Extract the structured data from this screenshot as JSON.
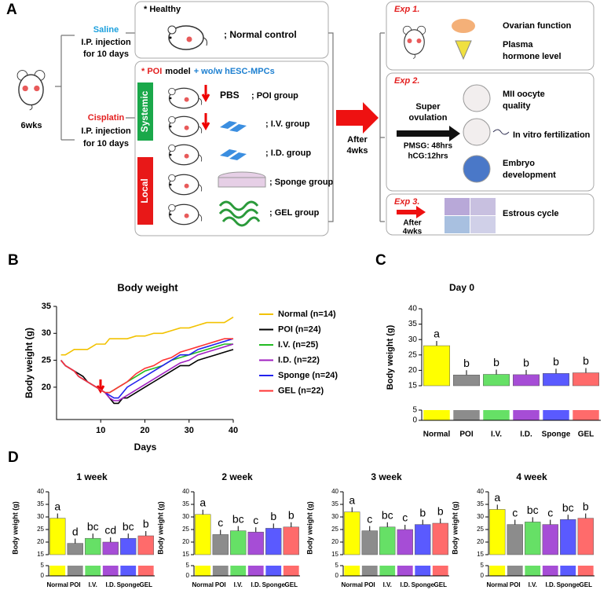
{
  "diagram": {
    "panel": "A",
    "age": "6wks",
    "saline": [
      "Saline",
      "I.P. injection",
      "for 10 days"
    ],
    "cisplatin": [
      "Cisplatin",
      "I.P. injection",
      "for 10 days"
    ],
    "healthy": "* Healthy",
    "normal_control": "; Normal control",
    "poi_header": [
      "* POI",
      "model",
      "+ wo/w hESC-MPCs"
    ],
    "systemic": "Systemic",
    "local": "Local",
    "pbs": "PBS",
    "groups": [
      "; POI group",
      "; I.V. group",
      "; I.D. group",
      "; Sponge group",
      "; GEL group"
    ],
    "after": [
      "After",
      "4wks"
    ],
    "exp1": {
      "label": "Exp 1.",
      "texts": [
        "Ovarian function",
        "Plasma",
        "hormone level"
      ]
    },
    "exp2": {
      "label": "Exp 2.",
      "superovulation": [
        "Super",
        "ovulation"
      ],
      "hormones": [
        "PMSG: 48hrs",
        "hCG:12hrs"
      ],
      "texts": [
        "MII oocyte",
        "quality",
        "In vitro fertilization",
        "Embryo",
        "development"
      ]
    },
    "exp3": {
      "label": "Exp 3.",
      "after": [
        "After",
        "4wks"
      ],
      "text": "Estrous cycle"
    }
  },
  "chart_data": [
    {
      "type": "line",
      "panel": "B",
      "title": "Body weight",
      "x_label": "Days",
      "y_label": "Body weight (g)",
      "x": [
        1,
        2,
        3,
        4,
        5,
        6,
        7,
        8,
        9,
        10,
        11,
        12,
        13,
        14,
        15,
        16,
        18,
        20,
        22,
        24,
        26,
        28,
        30,
        32,
        34,
        36,
        38,
        40
      ],
      "xlim": [
        0,
        40
      ],
      "xticks": [
        10,
        20,
        30,
        40
      ],
      "ylim": [
        14,
        35
      ],
      "yticks": [
        20,
        25,
        30,
        35
      ],
      "series": [
        {
          "name": "Normal (n=14)",
          "color": "#f2c200",
          "values": [
            26,
            26,
            26.5,
            27,
            27,
            27,
            27,
            27.5,
            28,
            28,
            28,
            29,
            29,
            29,
            29,
            29,
            29.5,
            29.5,
            30,
            30,
            30.5,
            31,
            31,
            31.5,
            32,
            32,
            32,
            33
          ]
        },
        {
          "name": "POI (n=24)",
          "color": "#000000",
          "values": [
            25,
            24,
            23.5,
            23,
            22.5,
            22,
            21,
            20.5,
            20,
            19.5,
            19,
            18,
            17,
            17,
            18,
            18,
            19,
            20,
            21,
            22,
            23,
            24,
            24,
            25,
            25.5,
            26,
            26.5,
            27
          ]
        },
        {
          "name": "I.V. (n=25)",
          "color": "#22bb22",
          "values": [
            25,
            24,
            23.5,
            23,
            22,
            21.5,
            21,
            20.5,
            20,
            19.5,
            19,
            19,
            19.5,
            20,
            20.5,
            21,
            22,
            23,
            23.5,
            24,
            25,
            25.5,
            26,
            26.5,
            27,
            27.5,
            28,
            28
          ]
        },
        {
          "name": "I.D. (n=22)",
          "color": "#a020c0",
          "values": [
            25,
            24,
            23.5,
            23,
            22,
            21.5,
            21,
            20.5,
            20,
            19.5,
            19,
            18,
            17.5,
            17.5,
            18,
            18.5,
            19.5,
            20.5,
            21.5,
            22.5,
            23.5,
            24.5,
            25,
            26,
            26.5,
            27,
            27.5,
            28
          ]
        },
        {
          "name": "Sponge (n=24)",
          "color": "#2222ee",
          "values": [
            25,
            24,
            23.5,
            23,
            22,
            21.5,
            21,
            20.5,
            20,
            19.5,
            19,
            18.5,
            18,
            18,
            19,
            20,
            21,
            22,
            23,
            24,
            25,
            26,
            26,
            27,
            27.5,
            28,
            28.5,
            29
          ]
        },
        {
          "name": "GEL (n=22)",
          "color": "#ff3333",
          "values": [
            25,
            24,
            23.5,
            23,
            22,
            21.5,
            21,
            20.5,
            20,
            19.5,
            19,
            19,
            19.5,
            20,
            20.5,
            21,
            22.5,
            23.5,
            24,
            25,
            25.5,
            26.5,
            27,
            27.5,
            28,
            28.5,
            29,
            29
          ]
        }
      ]
    },
    {
      "type": "bar",
      "panel": "C",
      "title": "Day 0",
      "y_label": "Body weight (g)",
      "categories": [
        "Normal",
        "POI",
        "I.V.",
        "I.D.",
        "Sponge",
        "GEL"
      ],
      "values": [
        28,
        18.5,
        18.7,
        18.6,
        19,
        19.2
      ],
      "significance": [
        "a",
        "b",
        "b",
        "b",
        "b",
        "b"
      ],
      "colors": [
        "#ffff00",
        "#8c8c8c",
        "#66e066",
        "#a64dd6",
        "#5a5aff",
        "#ff6b6b"
      ],
      "ylim": [
        15,
        40
      ],
      "yticks": [
        15,
        20,
        25,
        30,
        35,
        40
      ],
      "lower_ylim": [
        0,
        5
      ],
      "lower_yticks": [
        0,
        5
      ]
    },
    {
      "type": "bar",
      "panel": "D",
      "title": "1 week",
      "y_label": "Body weight (g)",
      "categories": [
        "Normal",
        "POI",
        "I.V.",
        "I.D.",
        "Sponge",
        "GEL"
      ],
      "values": [
        29.5,
        19.5,
        21.5,
        20,
        21.5,
        22.5
      ],
      "significance": [
        "a",
        "d",
        "bc",
        "cd",
        "bc",
        "b"
      ],
      "colors": [
        "#ffff00",
        "#8c8c8c",
        "#66e066",
        "#a64dd6",
        "#5a5aff",
        "#ff6b6b"
      ],
      "ylim": [
        15,
        40
      ],
      "yticks": [
        15,
        20,
        25,
        30,
        35,
        40
      ],
      "lower_ylim": [
        0,
        5
      ],
      "lower_yticks": [
        0,
        5
      ]
    },
    {
      "type": "bar",
      "title": "2 week",
      "y_label": "Body weight (g)",
      "categories": [
        "Normal",
        "POI",
        "I.V.",
        "I.D.",
        "Sponge",
        "GEL"
      ],
      "values": [
        31,
        23,
        24.5,
        24,
        25.5,
        26
      ],
      "significance": [
        "a",
        "c",
        "bc",
        "c",
        "b",
        "b"
      ],
      "colors": [
        "#ffff00",
        "#8c8c8c",
        "#66e066",
        "#a64dd6",
        "#5a5aff",
        "#ff6b6b"
      ],
      "ylim": [
        15,
        40
      ],
      "yticks": [
        15,
        20,
        25,
        30,
        35,
        40
      ],
      "lower_ylim": [
        0,
        5
      ],
      "lower_yticks": [
        0,
        5
      ]
    },
    {
      "type": "bar",
      "title": "3 week",
      "y_label": "Body weight (g)",
      "categories": [
        "Normal",
        "POI",
        "I.V.",
        "I.D.",
        "Sponge",
        "GEL"
      ],
      "values": [
        32,
        24.5,
        26,
        25,
        27,
        27.5
      ],
      "significance": [
        "a",
        "c",
        "bc",
        "c",
        "b",
        "b"
      ],
      "colors": [
        "#ffff00",
        "#8c8c8c",
        "#66e066",
        "#a64dd6",
        "#5a5aff",
        "#ff6b6b"
      ],
      "ylim": [
        15,
        40
      ],
      "yticks": [
        15,
        20,
        25,
        30,
        35,
        40
      ],
      "lower_ylim": [
        0,
        5
      ],
      "lower_yticks": [
        0,
        5
      ]
    },
    {
      "type": "bar",
      "title": "4 week",
      "y_label": "Body weight (g)",
      "categories": [
        "Normal",
        "POI",
        "I.V.",
        "I.D.",
        "Sponge",
        "GEL"
      ],
      "values": [
        33,
        27,
        28,
        27,
        29,
        29.5
      ],
      "significance": [
        "a",
        "c",
        "bc",
        "c",
        "bc",
        "b"
      ],
      "colors": [
        "#ffff00",
        "#8c8c8c",
        "#66e066",
        "#a64dd6",
        "#5a5aff",
        "#ff6b6b"
      ],
      "ylim": [
        15,
        40
      ],
      "yticks": [
        15,
        20,
        25,
        30,
        35,
        40
      ],
      "lower_ylim": [
        0,
        5
      ],
      "lower_yticks": [
        0,
        5
      ]
    }
  ]
}
